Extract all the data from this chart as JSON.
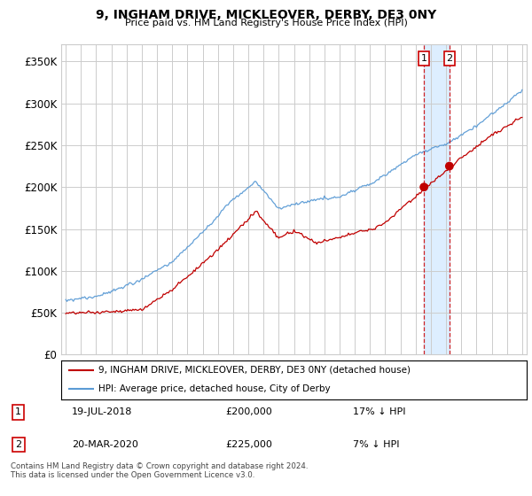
{
  "title": "9, INGHAM DRIVE, MICKLEOVER, DERBY, DE3 0NY",
  "subtitle": "Price paid vs. HM Land Registry's House Price Index (HPI)",
  "legend_line1": "9, INGHAM DRIVE, MICKLEOVER, DERBY, DE3 0NY (detached house)",
  "legend_line2": "HPI: Average price, detached house, City of Derby",
  "footer": "Contains HM Land Registry data © Crown copyright and database right 2024.\nThis data is licensed under the Open Government Licence v3.0.",
  "hpi_color": "#5b9bd5",
  "price_color": "#c00000",
  "span_color": "#ddeeff",
  "vline_color": "#cc0000",
  "background_color": "#ffffff",
  "grid_color": "#cccccc",
  "ylim": [
    0,
    370000
  ],
  "yticks": [
    0,
    50000,
    100000,
    150000,
    200000,
    250000,
    300000,
    350000
  ],
  "ytick_labels": [
    "£0",
    "£50K",
    "£100K",
    "£150K",
    "£200K",
    "£250K",
    "£300K",
    "£350K"
  ],
  "t1_year": 2018.547,
  "t2_year": 2020.22,
  "p1_price": 200000,
  "p2_price": 225000,
  "ann1_date": "19-JUL-2018",
  "ann1_price": "£200,000",
  "ann1_hpi": "17% ↓ HPI",
  "ann2_date": "20-MAR-2020",
  "ann2_price": "£225,000",
  "ann2_hpi": "7% ↓ HPI"
}
